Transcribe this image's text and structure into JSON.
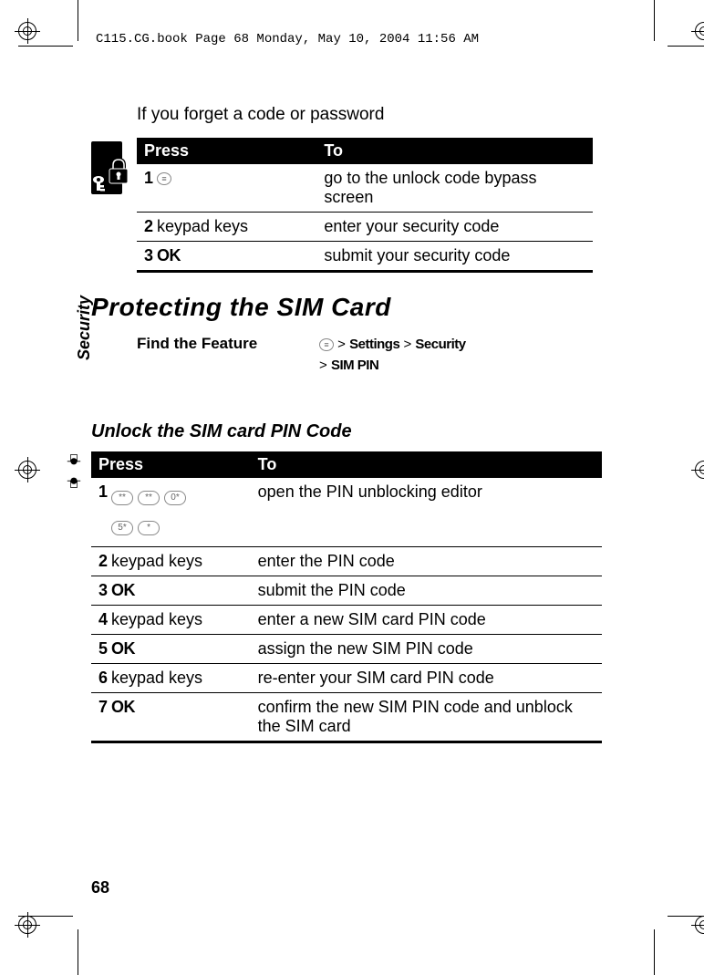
{
  "header": "C115.CG.book  Page 68  Monday, May 10, 2004  11:56 AM",
  "intro": "If you forget a code or password",
  "sidebar_label": "Security",
  "page_number": "68",
  "table1": {
    "headers": [
      "Press",
      "To"
    ],
    "rows": [
      {
        "num": "1",
        "press_type": "menu_icon",
        "press": "",
        "to": "go to the unlock code bypass screen"
      },
      {
        "num": "2",
        "press_type": "text",
        "press": "keypad keys",
        "to": "enter your security code"
      },
      {
        "num": "3",
        "press_type": "ok",
        "press": "OK",
        "to": "submit your security code"
      }
    ]
  },
  "heading1": "Protecting the SIM Card",
  "feature": {
    "label": "Find the Feature",
    "path_parts": [
      "Settings",
      "Security",
      "SIM PIN"
    ]
  },
  "heading2": "Unlock the SIM card PIN Code",
  "table2": {
    "headers": [
      "Press",
      "To"
    ],
    "rows": [
      {
        "num": "1",
        "press_type": "keys",
        "keys": [
          "**",
          "**",
          "0*"
        ],
        "keys2": [
          "5*",
          "*"
        ],
        "to": "open the PIN unblocking editor"
      },
      {
        "num": "2",
        "press_type": "text",
        "press": "keypad keys",
        "to": "enter the PIN code"
      },
      {
        "num": "3",
        "press_type": "ok",
        "press": "OK",
        "to": "submit the PIN code"
      },
      {
        "num": "4",
        "press_type": "text",
        "press": "keypad keys",
        "to": "enter a new SIM card PIN code"
      },
      {
        "num": "5",
        "press_type": "ok",
        "press": "OK",
        "to": "assign the new SIM PIN code"
      },
      {
        "num": "6",
        "press_type": "text",
        "press": "keypad keys",
        "to": "re-enter your SIM card PIN code"
      },
      {
        "num": "7",
        "press_type": "ok",
        "press": "OK",
        "to": "confirm the new SIM PIN code and unblock the SIM card"
      }
    ]
  },
  "colors": {
    "table_header_bg": "#000000",
    "table_header_fg": "#ffffff",
    "text": "#000000",
    "key_border": "#888888"
  }
}
